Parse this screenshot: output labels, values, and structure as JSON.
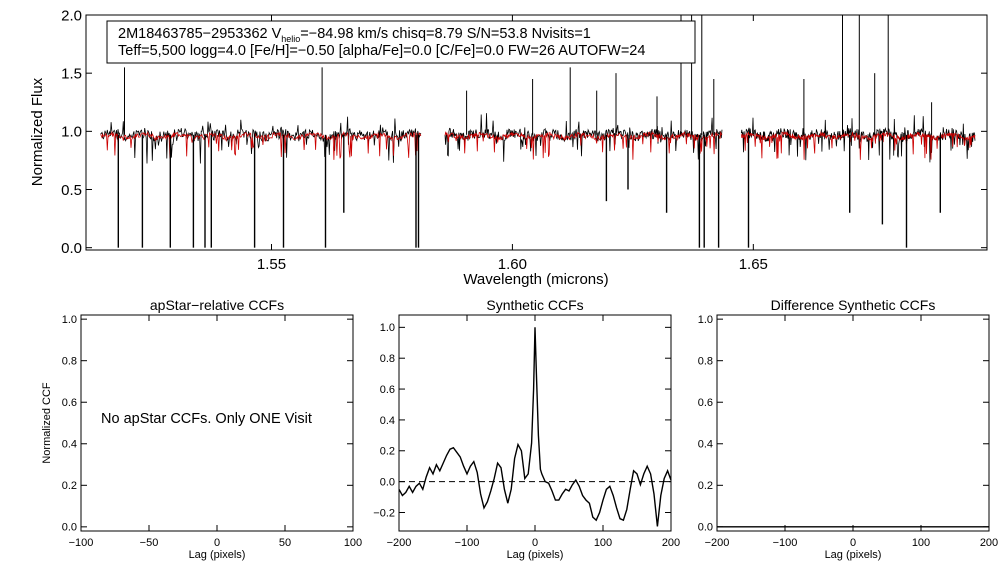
{
  "chart_data": [
    {
      "type": "line",
      "id": "spectrum",
      "xlabel": "Wavelength (microns)",
      "ylabel": "Normalized Flux",
      "xlim": [
        1.5115,
        1.6985
      ],
      "ylim": [
        -0.02,
        2.0
      ],
      "xticks": [
        1.55,
        1.6,
        1.65
      ],
      "xtick_labels": [
        "1.55",
        "1.60",
        "1.65"
      ],
      "yticks": [
        0.0,
        0.5,
        1.0,
        1.5,
        2.0
      ],
      "ytick_labels": [
        "0.0",
        "0.5",
        "1.0",
        "1.5",
        "2.0"
      ],
      "chips": [
        [
          1.5145,
          1.581
        ],
        [
          1.586,
          1.6435
        ],
        [
          1.6475,
          1.696
        ]
      ],
      "absorption_lines": [
        {
          "x": 1.5182,
          "y": 0.0
        },
        {
          "x": 1.5232,
          "y": 0.0
        },
        {
          "x": 1.529,
          "y": 0.0
        },
        {
          "x": 1.5338,
          "y": 0.0
        },
        {
          "x": 1.5362,
          "y": 0.0
        },
        {
          "x": 1.5375,
          "y": 0.0
        },
        {
          "x": 1.5465,
          "y": 0.0
        },
        {
          "x": 1.5525,
          "y": 0.0
        },
        {
          "x": 1.5612,
          "y": 0.0
        },
        {
          "x": 1.565,
          "y": 0.3
        },
        {
          "x": 1.58,
          "y": 0.0
        },
        {
          "x": 1.5805,
          "y": 0.0
        },
        {
          "x": 1.6195,
          "y": 0.4
        },
        {
          "x": 1.624,
          "y": 0.5
        },
        {
          "x": 1.632,
          "y": 0.3
        },
        {
          "x": 1.6388,
          "y": 0.0
        },
        {
          "x": 1.6398,
          "y": 0.0
        },
        {
          "x": 1.6428,
          "y": 0.0
        },
        {
          "x": 1.649,
          "y": 0.0
        },
        {
          "x": 1.67,
          "y": 0.3
        },
        {
          "x": 1.6768,
          "y": 0.2
        },
        {
          "x": 1.6818,
          "y": 0.0
        },
        {
          "x": 1.6888,
          "y": 0.3
        }
      ],
      "emission_spikes": [
        {
          "x": 1.5195,
          "y": 1.55
        },
        {
          "x": 1.5605,
          "y": 1.55
        },
        {
          "x": 1.5905,
          "y": 1.35
        },
        {
          "x": 1.6042,
          "y": 1.45
        },
        {
          "x": 1.612,
          "y": 1.55
        },
        {
          "x": 1.6175,
          "y": 1.35
        },
        {
          "x": 1.6215,
          "y": 1.5
        },
        {
          "x": 1.63,
          "y": 1.3
        },
        {
          "x": 1.635,
          "y": 2.0
        },
        {
          "x": 1.6372,
          "y": 2.0
        },
        {
          "x": 1.6393,
          "y": 2.0
        },
        {
          "x": 1.6418,
          "y": 1.45
        },
        {
          "x": 1.6605,
          "y": 1.45
        },
        {
          "x": 1.6685,
          "y": 2.0
        },
        {
          "x": 1.672,
          "y": 2.0
        },
        {
          "x": 1.6752,
          "y": 1.5
        },
        {
          "x": 1.678,
          "y": 2.0
        },
        {
          "x": 1.687,
          "y": 1.25
        }
      ],
      "legend_lines": [
        {
          "pre_sub": "2M18463785−2953362  V",
          "sub": "helio",
          "post_sub": "=−84.98 km/s  chisq=8.79  S/N=53.8  Nvisits=1"
        },
        {
          "pre_sub": "Teff=5,500 logg=4.0 [Fe/H]=−0.50 [alpha/Fe]=0.0 [C/Fe]=0.0 FW=26 AUTOFW=24",
          "sub": "",
          "post_sub": ""
        }
      ],
      "series": [
        {
          "name": "observed",
          "color": "#000000"
        },
        {
          "name": "model",
          "color": "#cc0000"
        }
      ]
    },
    {
      "type": "line",
      "id": "apstar",
      "title": "apStar−relative CCFs",
      "ylabel": "Normalized CCF",
      "xlabel": "Lag (pixels)",
      "xlim": [
        -100,
        100
      ],
      "ylim": [
        -0.02,
        1.02
      ],
      "xticks": [
        -100,
        -50,
        0,
        50,
        100
      ],
      "xtick_labels": [
        "−100",
        "−50",
        "0",
        "50",
        "100"
      ],
      "yticks": [
        0.0,
        0.2,
        0.4,
        0.6,
        0.8,
        1.0
      ],
      "ytick_labels": [
        "0.0",
        "0.2",
        "0.4",
        "0.6",
        "0.8",
        "1.0"
      ],
      "annotation": "No apStar CCFs.  Only ONE Visit",
      "series": []
    },
    {
      "type": "line",
      "id": "synthetic",
      "title": "Synthetic CCFs",
      "xlabel": "Lag (pixels)",
      "xlim": [
        -200,
        200
      ],
      "ylim": [
        -0.32,
        1.08
      ],
      "xticks": [
        -200,
        -100,
        0,
        100,
        200
      ],
      "xtick_labels": [
        "−200",
        "−100",
        "0",
        "100",
        "200"
      ],
      "yticks": [
        -0.2,
        0.0,
        0.2,
        0.4,
        0.6,
        0.8,
        1.0
      ],
      "ytick_labels": [
        "−0.2",
        "0.0",
        "0.2",
        "0.4",
        "0.6",
        "0.8",
        "1.0"
      ],
      "zero_line": 0.0,
      "series": [
        {
          "name": "synthetic CCF",
          "color": "#000000",
          "x": [
            -200,
            -195,
            -190,
            -185,
            -180,
            -175,
            -170,
            -165,
            -160,
            -155,
            -150,
            -145,
            -140,
            -135,
            -130,
            -125,
            -120,
            -115,
            -110,
            -105,
            -100,
            -95,
            -90,
            -85,
            -80,
            -75,
            -70,
            -65,
            -60,
            -55,
            -50,
            -45,
            -40,
            -35,
            -30,
            -25,
            -20,
            -15,
            -10,
            -5,
            -2,
            0,
            2,
            5,
            8,
            10,
            15,
            20,
            25,
            30,
            35,
            40,
            45,
            50,
            55,
            60,
            65,
            70,
            75,
            80,
            85,
            90,
            95,
            100,
            105,
            110,
            115,
            120,
            125,
            130,
            135,
            140,
            145,
            150,
            155,
            160,
            165,
            170,
            175,
            180,
            185,
            190,
            195,
            200
          ],
          "y": [
            -0.05,
            -0.09,
            -0.07,
            -0.03,
            -0.07,
            -0.03,
            -0.01,
            -0.05,
            0.03,
            0.09,
            0.05,
            0.11,
            0.07,
            0.12,
            0.17,
            0.21,
            0.22,
            0.19,
            0.16,
            0.1,
            0.05,
            0.1,
            0.13,
            0.06,
            -0.08,
            -0.17,
            -0.13,
            -0.06,
            0.02,
            0.12,
            0.09,
            -0.05,
            -0.14,
            -0.05,
            0.15,
            0.24,
            0.2,
            0.02,
            0.05,
            0.25,
            0.6,
            1.0,
            0.7,
            0.3,
            0.08,
            0.05,
            0.0,
            -0.01,
            -0.06,
            -0.12,
            -0.12,
            -0.08,
            -0.05,
            -0.06,
            -0.02,
            0.01,
            -0.03,
            -0.09,
            -0.12,
            -0.14,
            -0.23,
            -0.25,
            -0.2,
            -0.12,
            -0.05,
            -0.03,
            -0.09,
            -0.17,
            -0.24,
            -0.25,
            -0.18,
            -0.05,
            0.07,
            0.05,
            -0.02,
            0.05,
            0.1,
            0.05,
            -0.08,
            -0.29,
            -0.09,
            0.02,
            0.07,
            0.01
          ]
        }
      ]
    },
    {
      "type": "line",
      "id": "difference",
      "title": "Difference Synthetic CCFs",
      "xlabel": "Lag (pixels)",
      "xlim": [
        -200,
        200
      ],
      "ylim": [
        -0.02,
        1.02
      ],
      "xticks": [
        -200,
        -100,
        0,
        100,
        200
      ],
      "xtick_labels": [
        "−200",
        "−100",
        "0",
        "100",
        "200"
      ],
      "yticks": [
        0.0,
        0.2,
        0.4,
        0.6,
        0.8,
        1.0
      ],
      "ytick_labels": [
        "0.0",
        "0.2",
        "0.4",
        "0.6",
        "0.8",
        "1.0"
      ],
      "series": [
        {
          "name": "difference CCF",
          "color": "#000000",
          "x": [
            -200,
            200
          ],
          "y": [
            0.0,
            0.0
          ]
        }
      ]
    }
  ]
}
